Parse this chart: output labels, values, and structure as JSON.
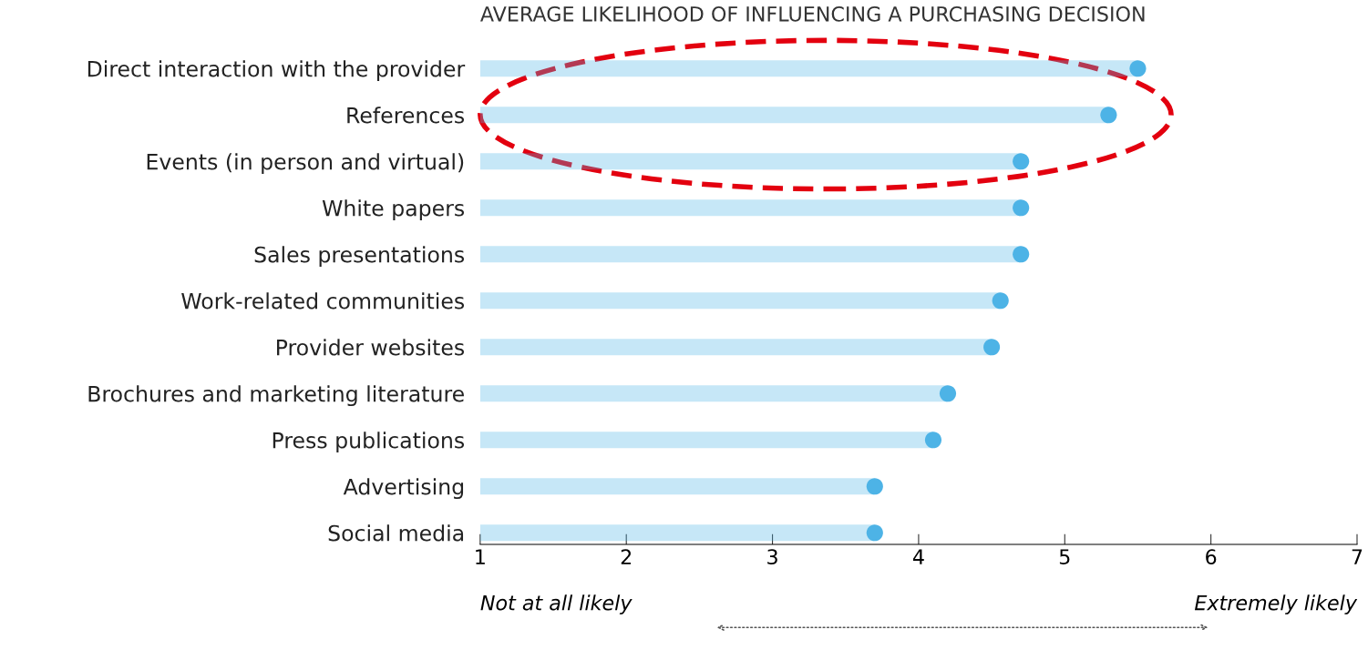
{
  "chart_data": {
    "type": "lollipop",
    "orientation": "horizontal",
    "title": "AVERAGE LIKELIHOOD OF INFLUENCING A PURCHASING DECISION",
    "categories": [
      "Direct interaction with the provider",
      "References",
      "Events (in person and virtual)",
      "White papers",
      "Sales presentations",
      "Work-related communities",
      "Provider websites",
      "Brochures and marketing literature",
      "Press publications",
      "Advertising",
      "Social media"
    ],
    "series": [
      {
        "color": "#4db3e6",
        "values": [
          5.5,
          5.3,
          4.7,
          4.7,
          4.7,
          4.56,
          4.5,
          4.2,
          4.1,
          3.7,
          3.7
        ]
      }
    ],
    "xlim": [
      1,
      7
    ],
    "xticks": [
      1,
      2,
      3,
      4,
      5,
      6,
      7
    ],
    "legend": false,
    "marker": "circle",
    "annotations": [
      "Not at all likely",
      "Extremely likely"
    ]
  }
}
